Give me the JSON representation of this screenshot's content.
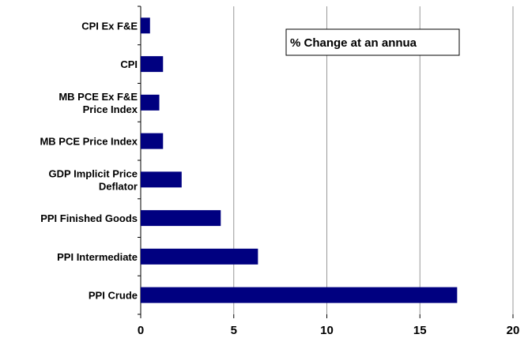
{
  "chart_data": {
    "type": "bar",
    "orientation": "horizontal",
    "annotation": "% Change at an annua",
    "categories": [
      "CPI Ex F&E",
      "CPI",
      "MB PCE Ex F&E\nPrice Index",
      "MB PCE Price Index",
      "GDP Implicit Price\nDeflator",
      "PPI Finished Goods",
      "PPI Intermediate",
      "PPI Crude"
    ],
    "values": [
      0.5,
      1.2,
      1.0,
      1.2,
      2.2,
      4.3,
      6.3,
      17.0
    ],
    "color": "#000080",
    "xlim": [
      0,
      20
    ],
    "xticks": [
      0,
      5,
      10,
      15,
      20
    ],
    "grid": true
  }
}
